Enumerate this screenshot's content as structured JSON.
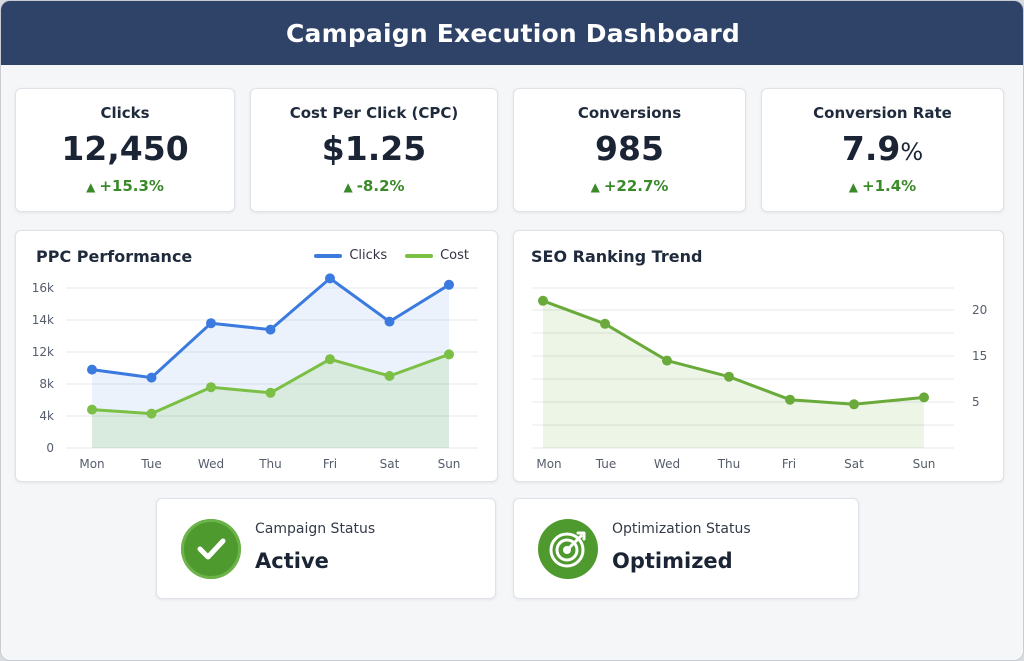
{
  "header": {
    "title": "Campaign Execution Dashboard"
  },
  "colors": {
    "header": "#2f4268",
    "clicks": "#3b7be0",
    "cost": "#7bbf45",
    "seo": "#6aaa3a",
    "positive": "#3a8a2a"
  },
  "kpis": [
    {
      "label": "Clicks",
      "value": "12,450",
      "unit": "",
      "delta": "+15.3%",
      "trend_icon": "triangle-up-icon"
    },
    {
      "label": "Cost Per Click (CPC)",
      "value": "$1.25",
      "unit": "",
      "delta": "-8.2%",
      "trend_icon": "triangle-up-icon"
    },
    {
      "label": "Conversions",
      "value": "985",
      "unit": "",
      "delta": "+22.7%",
      "trend_icon": "triangle-up-icon"
    },
    {
      "label": "Conversion Rate",
      "value": "7.9",
      "unit": "%",
      "delta": "+1.4%",
      "trend_icon": "triangle-up-icon"
    }
  ],
  "chart_data": [
    {
      "type": "line",
      "title": "PPC Performance",
      "categories": [
        "Mon",
        "Tue",
        "Wed",
        "Thu",
        "Fri",
        "Sat",
        "Sun"
      ],
      "yticks": [
        "0",
        "4k",
        "8k",
        "12k",
        "14k",
        "16k"
      ],
      "ylim": [
        0,
        16000
      ],
      "series": [
        {
          "name": "Clicks",
          "values": [
            9800,
            8800,
            13800,
            13400,
            16600,
            13900,
            16200
          ]
        },
        {
          "name": "Cost",
          "values": [
            4800,
            4300,
            7600,
            6900,
            11100,
            9000,
            11700
          ]
        }
      ]
    },
    {
      "type": "line",
      "title": "SEO Ranking Trend",
      "categories": [
        "Mon",
        "Tue",
        "Wed",
        "Thu",
        "Fri",
        "Sat",
        "Sun"
      ],
      "yticks": [
        "20",
        "15",
        "5"
      ],
      "series": [
        {
          "name": "Ranking",
          "values": [
            21,
            18.5,
            14,
            10.5,
            5.5,
            4.5,
            6
          ]
        }
      ]
    }
  ],
  "status": {
    "campaign": {
      "label": "Campaign Status",
      "value": "Active",
      "icon": "checkmark-icon"
    },
    "optimization": {
      "label": "Optimization Status",
      "value": "Optimized",
      "icon": "target-icon"
    }
  }
}
